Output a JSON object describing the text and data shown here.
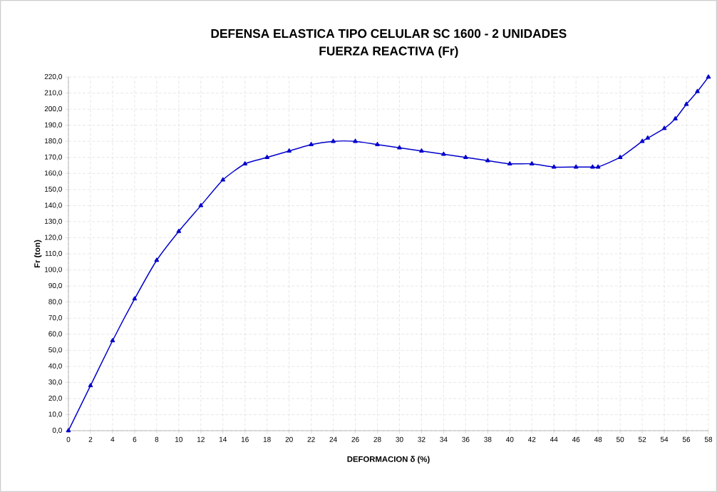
{
  "chart_data": {
    "type": "line",
    "title": "DEFENSA ELASTICA TIPO CELULAR SC 1600 - 2 UNIDADES",
    "subtitle": "FUERZA REACTIVA (Fr)",
    "xlabel": "DEFORMACION δ (%)",
    "ylabel": "Fr (ton)",
    "x": [
      0,
      2,
      4,
      6,
      8,
      10,
      12,
      14,
      16,
      18,
      20,
      22,
      24,
      26,
      28,
      30,
      32,
      34,
      36,
      38,
      40,
      42,
      44,
      46,
      47.5,
      48,
      50,
      52,
      52.5,
      54,
      55,
      56,
      57,
      58
    ],
    "series": [
      {
        "color": "#0000cc",
        "values": [
          0,
          28,
          56,
          82,
          106,
          124,
          140,
          156,
          166,
          170,
          174,
          178,
          180,
          180,
          178,
          176,
          174,
          172,
          170,
          168,
          166,
          166,
          164,
          164,
          164,
          164,
          170,
          180,
          182,
          188,
          194,
          203,
          211,
          220
        ]
      }
    ],
    "xlim": [
      0,
      58
    ],
    "xticks": [
      0,
      2,
      4,
      6,
      8,
      10,
      12,
      14,
      16,
      18,
      20,
      22,
      24,
      26,
      28,
      30,
      32,
      34,
      36,
      38,
      40,
      42,
      44,
      46,
      48,
      50,
      52,
      54,
      56,
      58
    ],
    "ylim": [
      0,
      220
    ],
    "yticks": [
      {
        "value": 0,
        "label": "0,0"
      },
      {
        "value": 10,
        "label": "10,0"
      },
      {
        "value": 20,
        "label": "20,0"
      },
      {
        "value": 30,
        "label": "30,0"
      },
      {
        "value": 40,
        "label": "40,0"
      },
      {
        "value": 50,
        "label": "50,0"
      },
      {
        "value": 60,
        "label": "60,0"
      },
      {
        "value": 70,
        "label": "70,0"
      },
      {
        "value": 80,
        "label": "80,0"
      },
      {
        "value": 90,
        "label": "90,0"
      },
      {
        "value": 100,
        "label": "100,0"
      },
      {
        "value": 110,
        "label": "110,0"
      },
      {
        "value": 120,
        "label": "120,0"
      },
      {
        "value": 130,
        "label": "130,0"
      },
      {
        "value": 140,
        "label": "140,0"
      },
      {
        "value": 150,
        "label": "150,0"
      },
      {
        "value": 160,
        "label": "160,0"
      },
      {
        "value": 170,
        "label": "170,0"
      },
      {
        "value": 180,
        "label": "180,0"
      },
      {
        "value": 190,
        "label": "190,0"
      },
      {
        "value": 200,
        "label": "200,0"
      },
      {
        "value": 210,
        "label": "210,0"
      },
      {
        "value": 220,
        "label": "220,0"
      }
    ],
    "grid": true,
    "marker": "triangle",
    "line_style": "solid"
  }
}
